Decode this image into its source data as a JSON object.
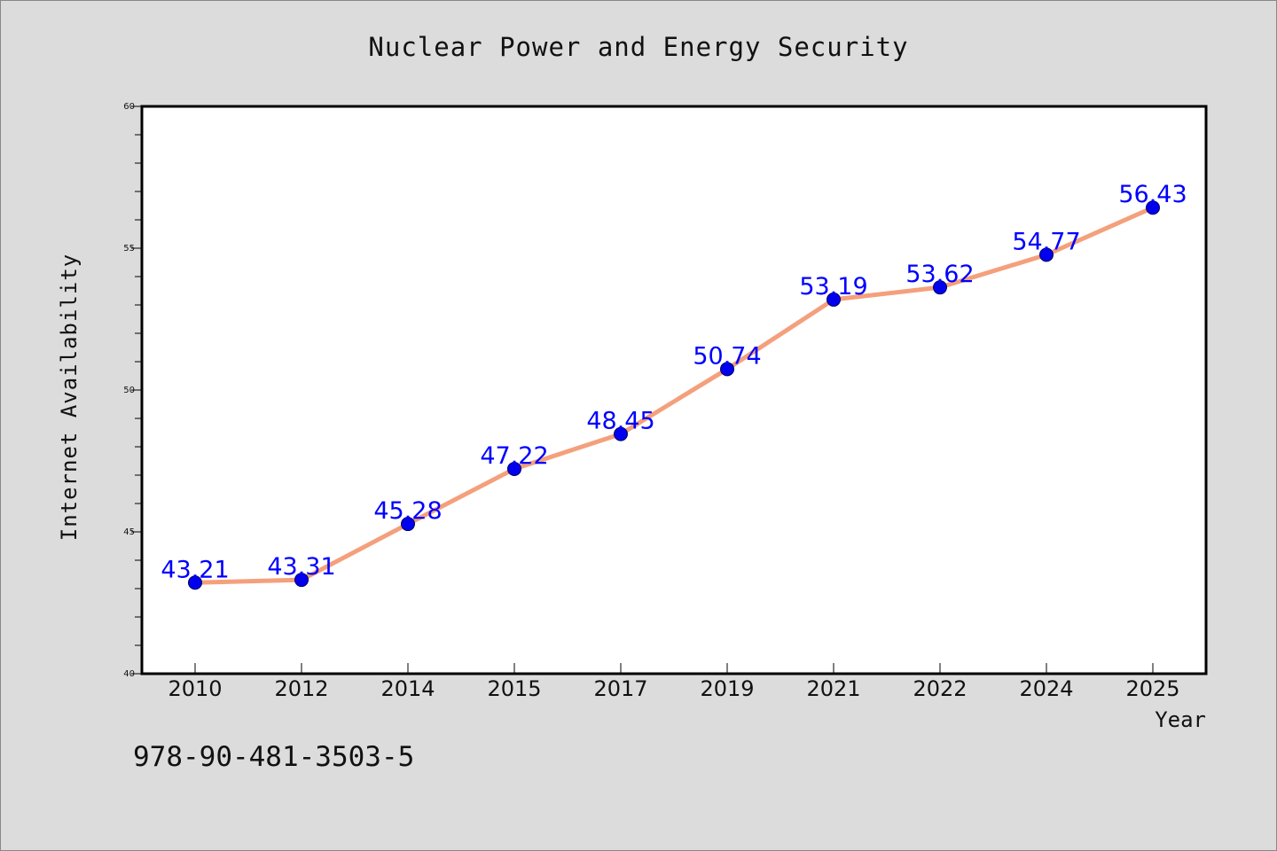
{
  "chart_data": {
    "type": "line",
    "title": "Nuclear Power and Energy Security",
    "xlabel": "Year",
    "ylabel": "Internet Availability",
    "categories": [
      "2010",
      "2012",
      "2014",
      "2015",
      "2017",
      "2019",
      "2021",
      "2022",
      "2024",
      "2025"
    ],
    "series": [
      {
        "values": [
          43.21,
          43.31,
          45.28,
          47.22,
          48.45,
          50.74,
          53.19,
          53.62,
          54.77,
          56.43
        ],
        "data_labels": [
          "43.21",
          "43.31",
          "45.28",
          "47.22",
          "48.45",
          "50.74",
          "53.19",
          "53.62",
          "54.77",
          "56.43"
        ]
      }
    ],
    "ylim": [
      40,
      60
    ],
    "yticks": [
      40,
      45,
      50,
      55,
      60
    ],
    "ytick_labels": [
      "40",
      "45",
      "50",
      "55",
      "60"
    ],
    "grid": false,
    "line_color": "#f4a07c",
    "marker_color": "#0000ee",
    "label_color": "#0000ff",
    "background_color": "#dcdcdc",
    "plot_background_color": "#ffffff"
  },
  "annotation": "978-90-481-3503-5"
}
